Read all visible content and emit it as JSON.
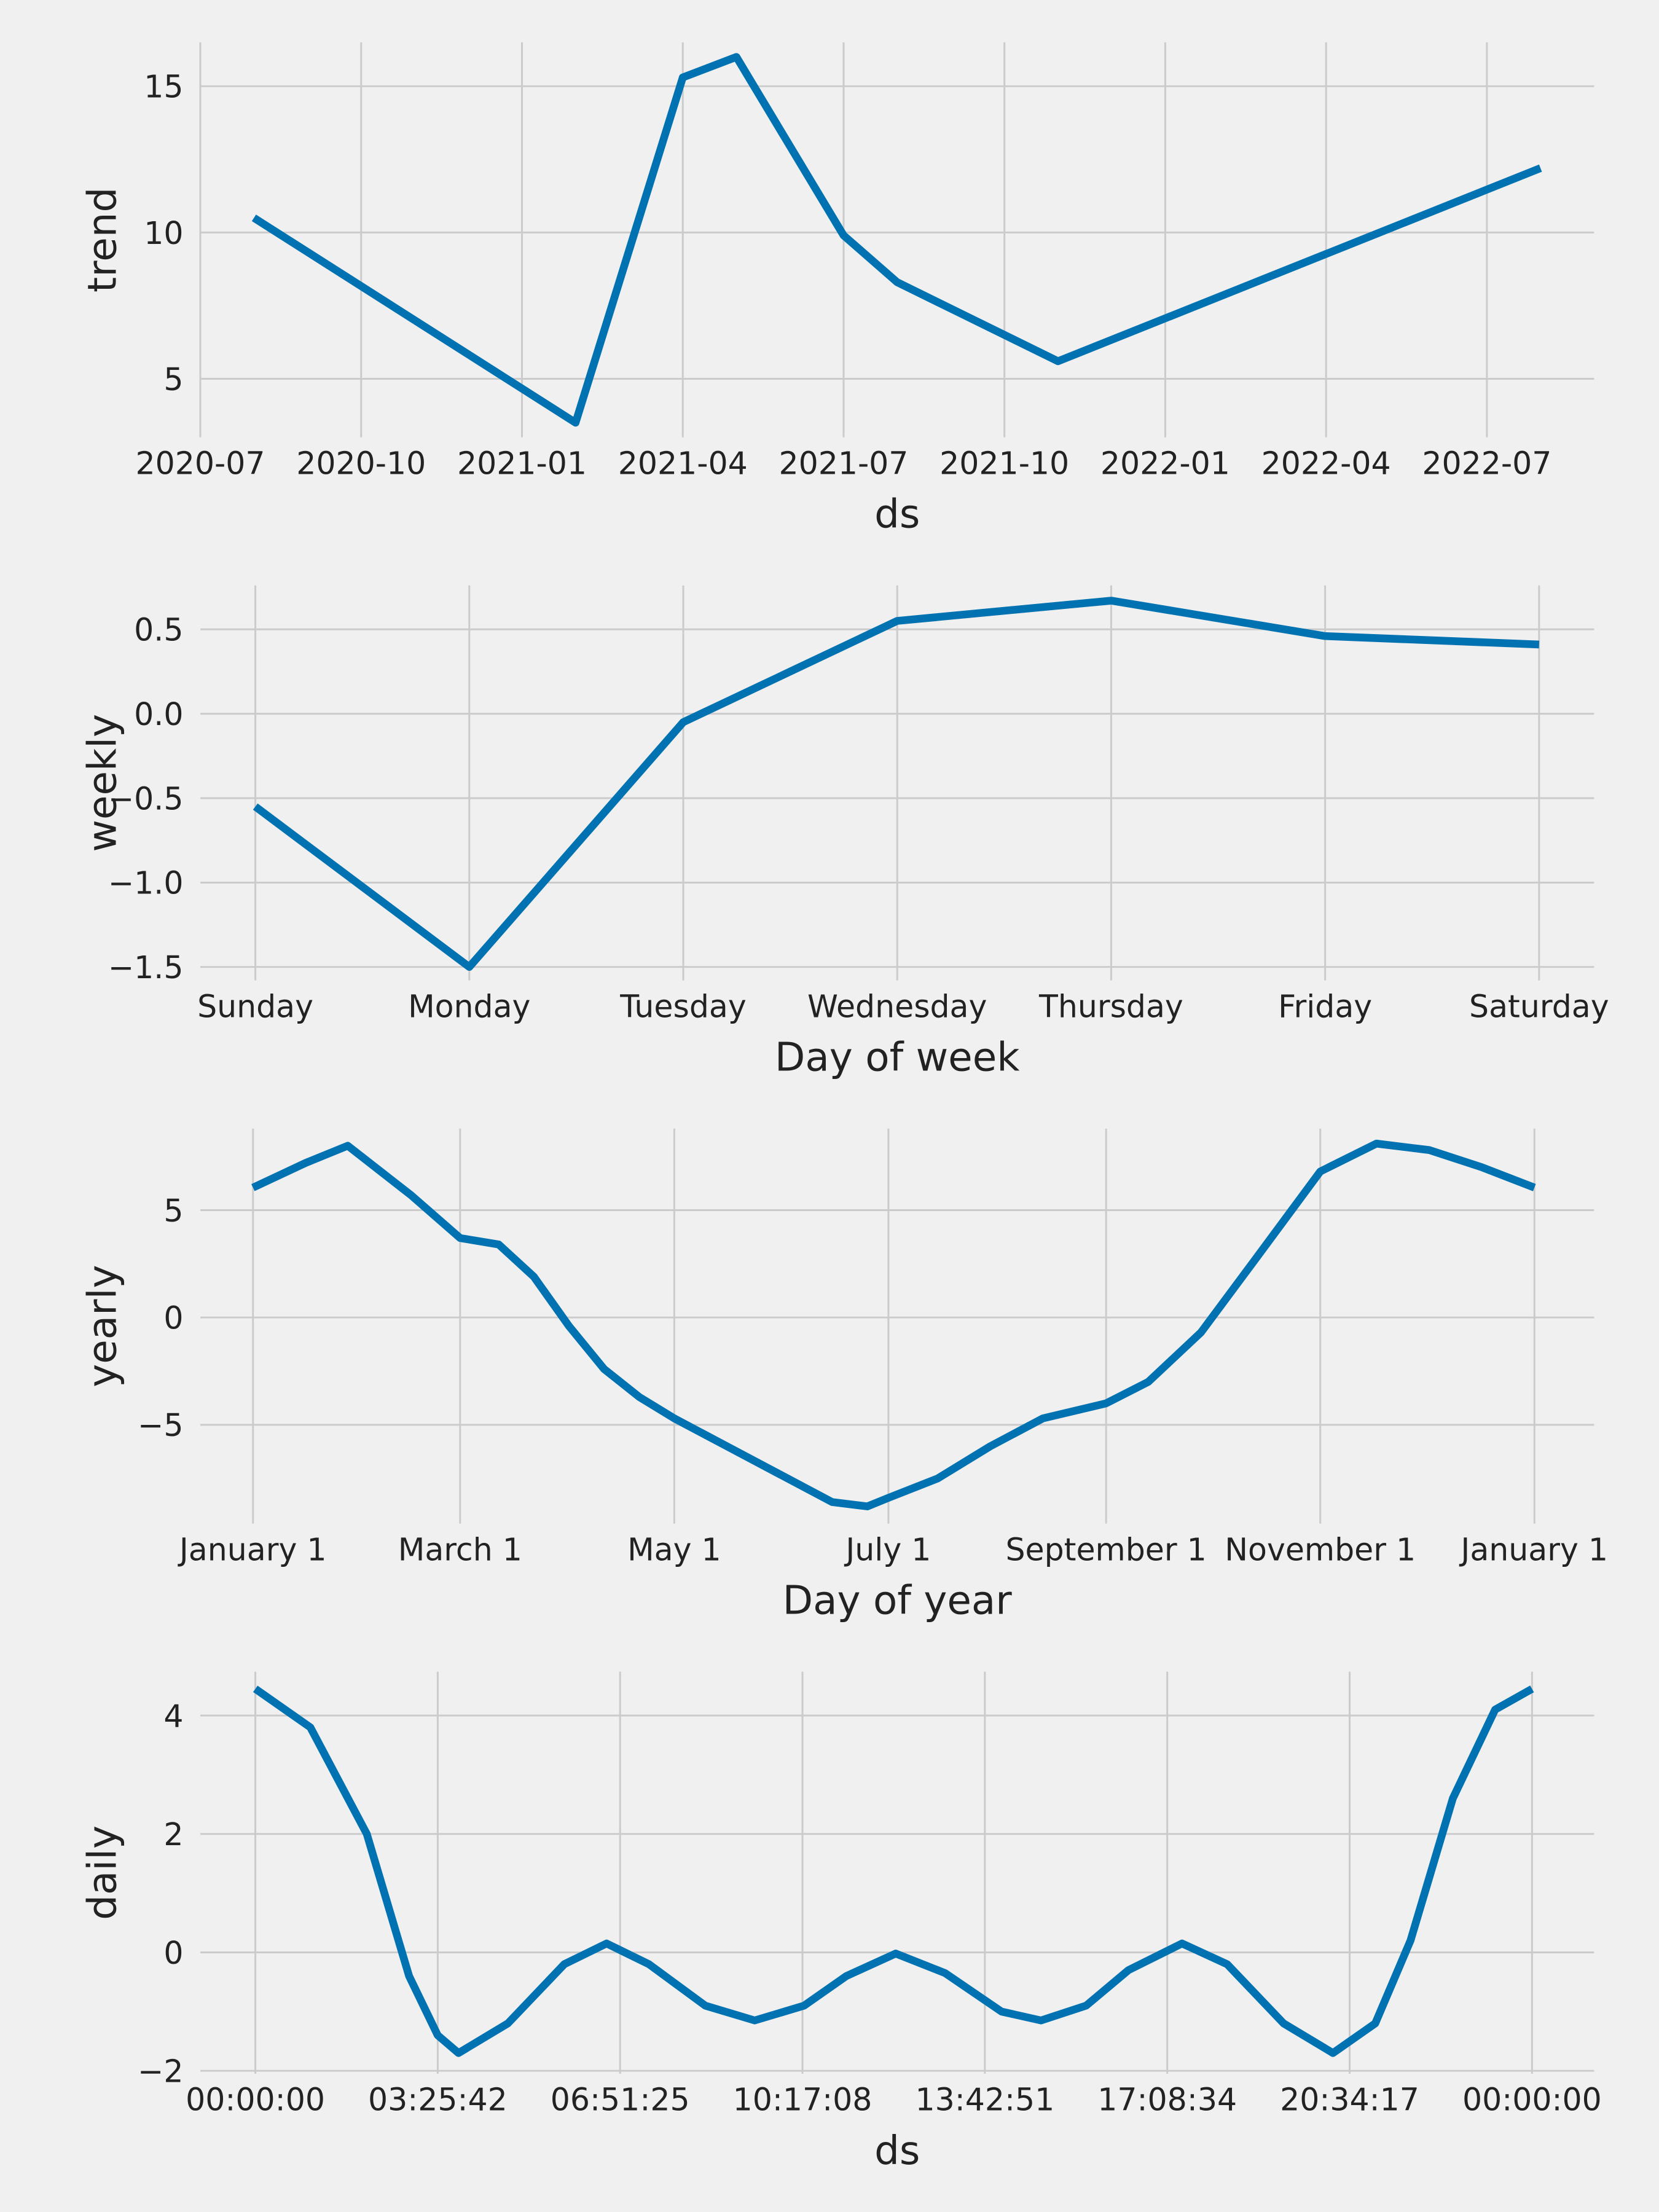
{
  "chart_data": [
    {
      "type": "line",
      "ylabel": "trend",
      "xlabel": "ds",
      "color": "#0072B2",
      "grid": true,
      "x": [
        "2020-08",
        "2021-02",
        "2021-04",
        "2021-05",
        "2021-07",
        "2021-08",
        "2021-11",
        "2022-08"
      ],
      "values": [
        10.5,
        3.5,
        15.3,
        16.0,
        9.9,
        8.3,
        5.6,
        12.2
      ],
      "xlim": [
        "2020-07",
        "2022-09"
      ],
      "xticks": [
        "2020-07",
        "2020-10",
        "2021-01",
        "2021-04",
        "2021-07",
        "2021-10",
        "2022-01",
        "2022-04",
        "2022-07"
      ],
      "ylim": [
        3.0,
        16.5
      ],
      "yticks": [
        5,
        10,
        15
      ]
    },
    {
      "type": "line",
      "ylabel": "weekly",
      "xlabel": "Day of week",
      "color": "#0072B2",
      "grid": true,
      "categories": [
        "Sunday",
        "Monday",
        "Tuesday",
        "Wednesday",
        "Thursday",
        "Friday",
        "Saturday"
      ],
      "values": [
        -0.55,
        -1.5,
        -0.05,
        0.55,
        0.67,
        0.46,
        0.41
      ],
      "ylim": [
        -1.58,
        0.76
      ],
      "yticks": [
        {
          "value": -1.5,
          "label": "−1.5"
        },
        {
          "value": -1.0,
          "label": "−1.0"
        },
        {
          "value": -0.5,
          "label": "−0.5"
        },
        {
          "value": 0,
          "label": "0.0"
        },
        0.5
      ]
    },
    {
      "type": "line",
      "ylabel": "yearly",
      "xlabel": "Day of year",
      "color": "#0072B2",
      "grid": true,
      "x": [
        0,
        15,
        27,
        45,
        59,
        70,
        80,
        90,
        100,
        110,
        120,
        135,
        150,
        165,
        175,
        181,
        195,
        210,
        225,
        243,
        255,
        270,
        285,
        304,
        320,
        335,
        350,
        365
      ],
      "values": [
        6.05,
        7.2,
        8.0,
        5.7,
        3.7,
        3.4,
        1.9,
        -0.4,
        -2.4,
        -3.7,
        -4.7,
        -6.0,
        -7.3,
        -8.6,
        -8.8,
        -8.4,
        -7.5,
        -6.0,
        -4.7,
        -4.0,
        -3.0,
        -0.7,
        2.6,
        6.8,
        8.1,
        7.8,
        7.0,
        6.05
      ],
      "xlim": [
        -15,
        382
      ],
      "xticks": [
        {
          "value": 0,
          "label": "January 1"
        },
        {
          "value": 59,
          "label": "March 1"
        },
        {
          "value": 120,
          "label": "May 1"
        },
        {
          "value": 181,
          "label": "July 1"
        },
        {
          "value": 243,
          "label": "September 1"
        },
        {
          "value": 304,
          "label": "November 1"
        },
        {
          "value": 365,
          "label": "January 1"
        }
      ],
      "ylim": [
        -9.6,
        8.8
      ],
      "yticks": [
        {
          "value": -5,
          "label": "−5"
        },
        0,
        5
      ]
    },
    {
      "type": "line",
      "ylabel": "daily",
      "xlabel": "ds",
      "color": "#0072B2",
      "grid": true,
      "x": [
        0,
        3723,
        7542,
        10405,
        12342,
        13750,
        17090,
        20908,
        23771,
        26635,
        30453,
        33794,
        37134,
        39998,
        43338,
        46679,
        50497,
        53169,
        56223,
        59087,
        62713,
        65768,
        69586,
        72927,
        75790,
        78177,
        81041,
        83904,
        86400
      ],
      "values": [
        4.45,
        3.8,
        2.0,
        -0.4,
        -1.4,
        -1.7,
        -1.2,
        -0.2,
        0.15,
        -0.2,
        -0.9,
        -1.15,
        -0.9,
        -0.4,
        -0.02,
        -0.35,
        -1.0,
        -1.15,
        -0.9,
        -0.3,
        0.15,
        -0.2,
        -1.2,
        -1.7,
        -1.2,
        0.2,
        2.6,
        4.1,
        4.45
      ],
      "xlim": [
        -3723,
        90601
      ],
      "xticks": [
        {
          "value": 0,
          "label": "00:00:00"
        },
        {
          "value": 12342,
          "label": "03:25:42"
        },
        {
          "value": 24685,
          "label": "06:51:25"
        },
        {
          "value": 37028,
          "label": "10:17:08"
        },
        {
          "value": 49371,
          "label": "13:42:51"
        },
        {
          "value": 61714,
          "label": "17:08:34"
        },
        {
          "value": 74057,
          "label": "20:34:17"
        },
        {
          "value": 86400,
          "label": "00:00:00"
        }
      ],
      "ylim": [
        -2.05,
        4.74
      ],
      "yticks": [
        {
          "value": -2,
          "label": "−2"
        },
        0,
        2,
        4
      ]
    }
  ]
}
